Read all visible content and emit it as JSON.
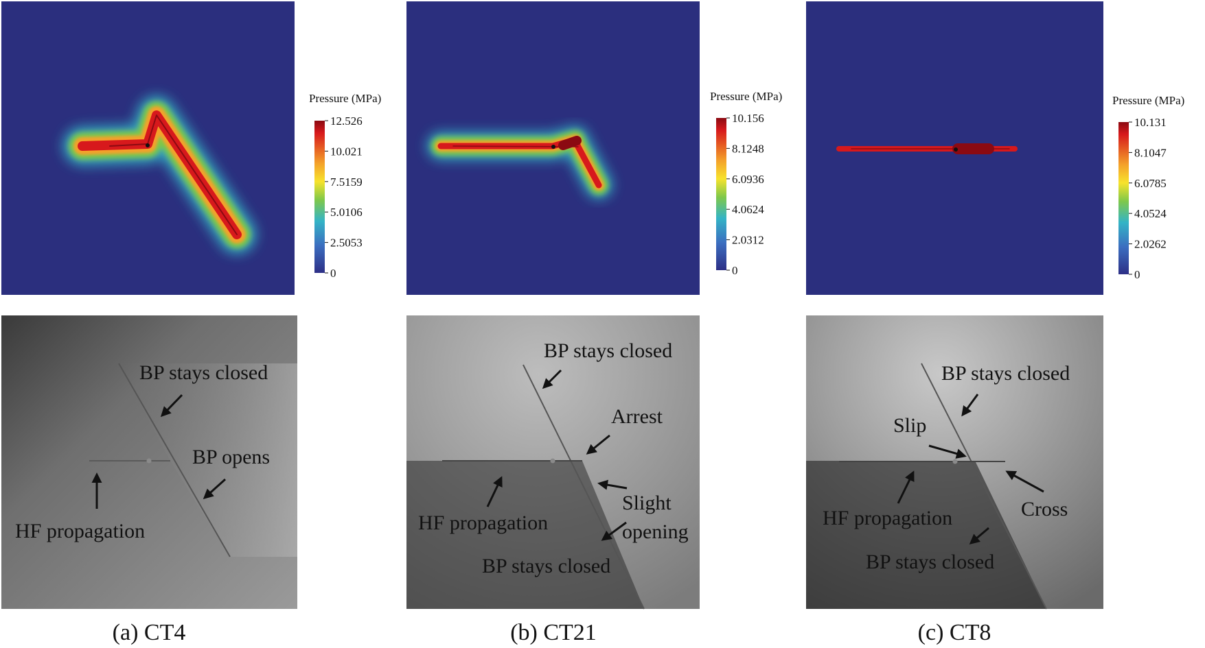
{
  "colors": {
    "background": "#2b2f7e",
    "colormap": [
      "#8b0a12",
      "#d7191c",
      "#f4a12a",
      "#f7e32c",
      "#7fc84a",
      "#34b4c6",
      "#3b6ec0",
      "#2d2f86"
    ]
  },
  "scale_title": "Pressure (MPa)",
  "panels": [
    {
      "caption": "(a) CT4",
      "scale": [
        "12.526",
        "10.021",
        "7.5159",
        "5.0106",
        "2.5053",
        "0"
      ],
      "labels": [
        "BP stays closed",
        "BP opens",
        "HF propagation"
      ]
    },
    {
      "caption": "(b) CT21",
      "scale": [
        "10.156",
        "8.1248",
        "6.0936",
        "4.0624",
        "2.0312",
        "0"
      ],
      "labels": [
        "BP stays closed",
        "Arrest",
        "Slight",
        "opening",
        "HF propagation",
        "BP stays closed"
      ]
    },
    {
      "caption": "(c) CT8",
      "scale": [
        "10.131",
        "8.1047",
        "6.0785",
        "4.0524",
        "2.0262",
        "0"
      ],
      "labels": [
        "BP stays closed",
        "Slip",
        "Cross",
        "HF propagation",
        "BP stays closed"
      ]
    }
  ]
}
